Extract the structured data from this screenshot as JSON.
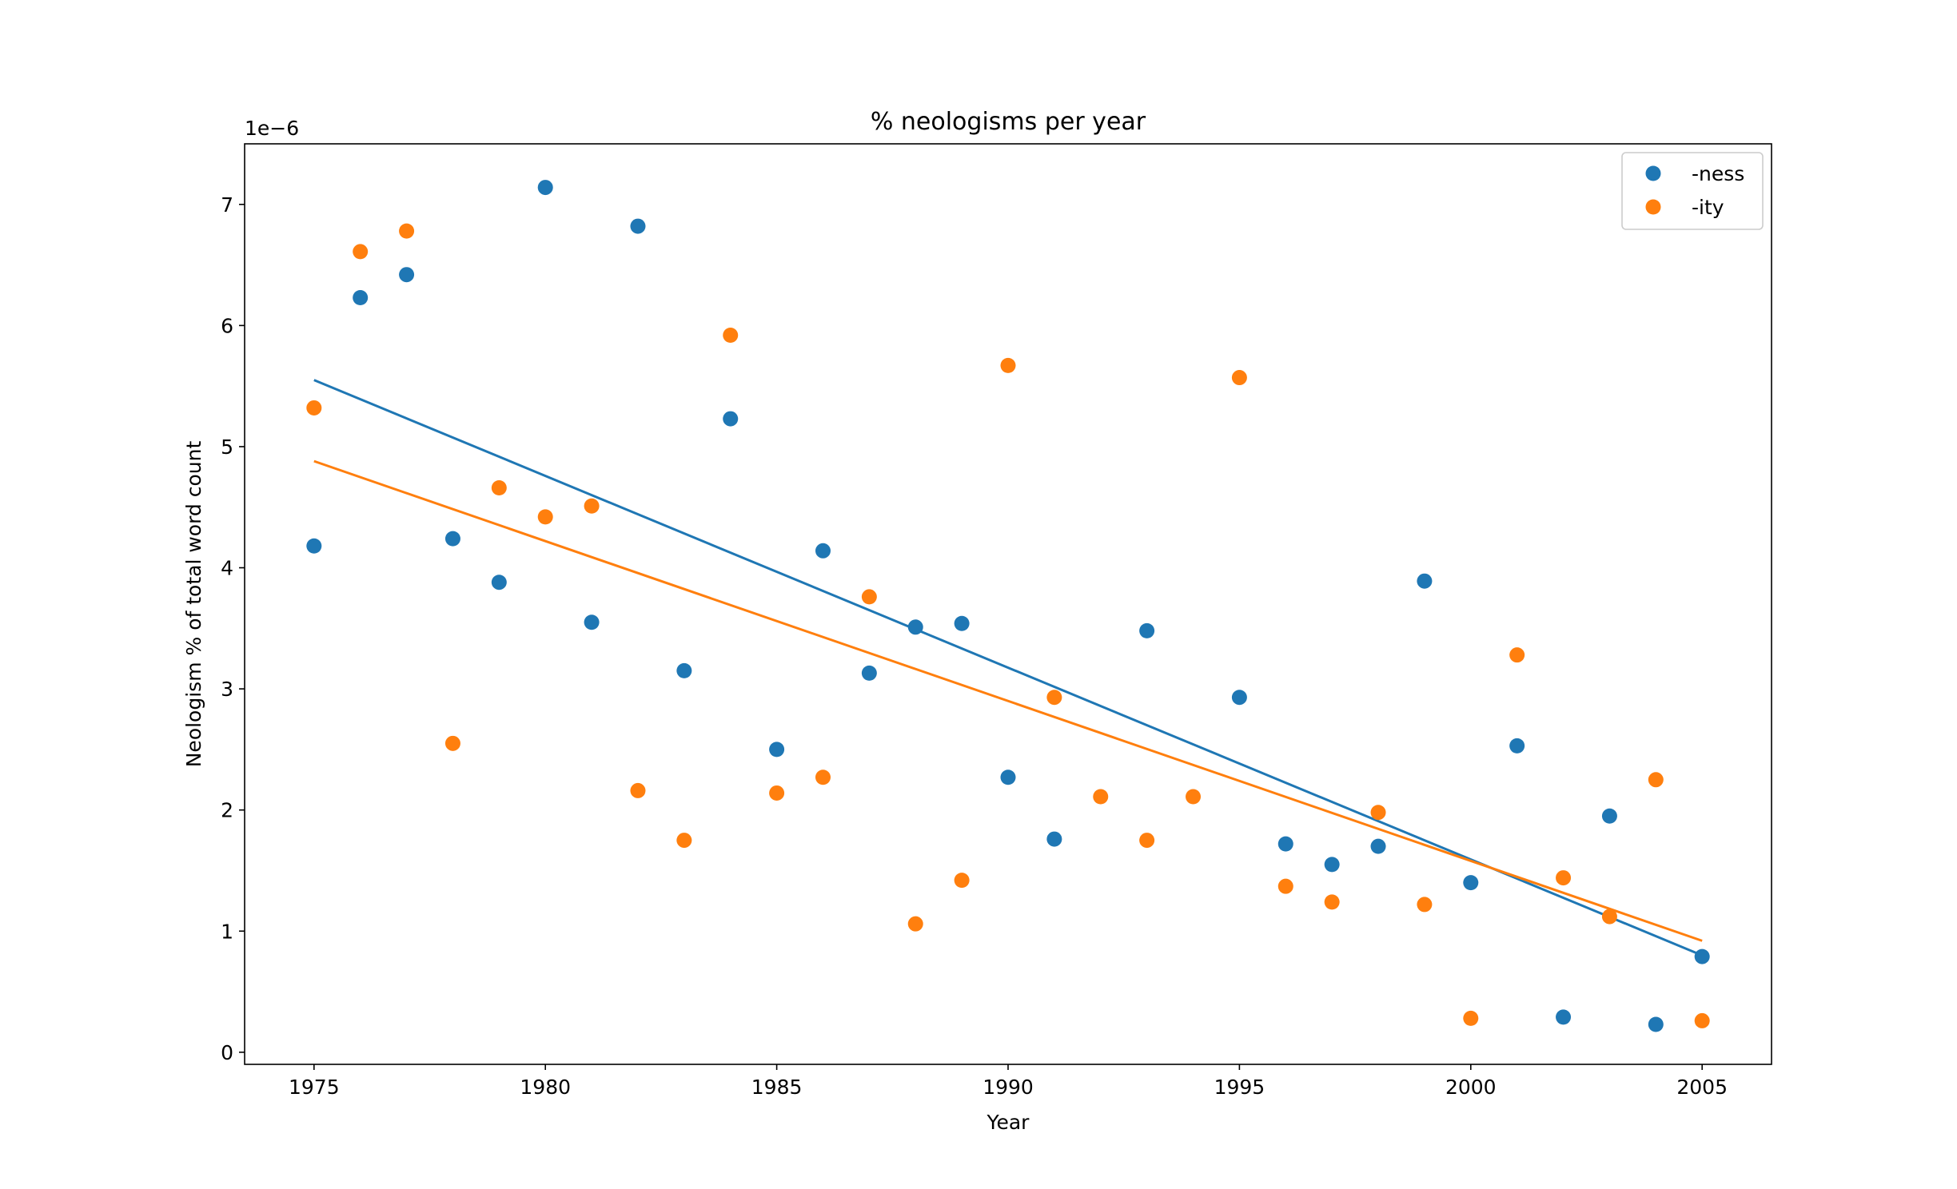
{
  "chart_data": {
    "type": "scatter",
    "title": "% neologisms per year",
    "xlabel": "Year",
    "ylabel": "Neologism % of total word count",
    "y_scale_label": "1e−6",
    "xlim": [
      1973.5,
      2006.5
    ],
    "ylim": [
      -0.1,
      7.5
    ],
    "xticks": [
      1975,
      1980,
      1985,
      1990,
      1995,
      2000,
      2005
    ],
    "yticks": [
      0,
      1,
      2,
      3,
      4,
      5,
      6,
      7
    ],
    "grid": false,
    "legend_position": "top-right",
    "series": [
      {
        "name": "-ness",
        "color": "#1f77b4",
        "x": [
          1975,
          1976,
          1977,
          1978,
          1979,
          1980,
          1981,
          1982,
          1983,
          1984,
          1985,
          1986,
          1987,
          1988,
          1989,
          1990,
          1991,
          1993,
          1995,
          1996,
          1997,
          1998,
          1999,
          2000,
          2001,
          2002,
          2003,
          2004,
          2005
        ],
        "y": [
          4.18,
          6.23,
          6.42,
          4.24,
          3.88,
          7.14,
          3.55,
          6.82,
          3.15,
          5.23,
          2.5,
          4.14,
          3.13,
          3.51,
          3.54,
          2.27,
          1.76,
          3.48,
          2.93,
          1.72,
          1.55,
          1.7,
          3.89,
          1.4,
          2.53,
          0.29,
          1.95,
          0.23,
          0.79
        ],
        "trend": {
          "x": [
            1975,
            2005
          ],
          "y": [
            5.55,
            0.8
          ]
        }
      },
      {
        "name": "-ity",
        "color": "#ff7f0e",
        "x": [
          1975,
          1976,
          1977,
          1978,
          1979,
          1980,
          1981,
          1982,
          1983,
          1984,
          1985,
          1986,
          1987,
          1988,
          1989,
          1990,
          1991,
          1992,
          1993,
          1994,
          1995,
          1996,
          1997,
          1998,
          1999,
          2000,
          2001,
          2002,
          2003,
          2004,
          2005
        ],
        "y": [
          5.32,
          6.61,
          6.78,
          2.55,
          4.66,
          4.42,
          4.51,
          2.16,
          1.75,
          5.92,
          2.14,
          2.27,
          3.76,
          1.06,
          1.42,
          5.67,
          2.93,
          2.11,
          1.75,
          2.11,
          5.57,
          1.37,
          1.24,
          1.98,
          1.22,
          0.28,
          3.28,
          1.44,
          1.12,
          2.25,
          0.26
        ],
        "trend": {
          "x": [
            1975,
            2005
          ],
          "y": [
            4.88,
            0.92
          ]
        }
      }
    ]
  }
}
